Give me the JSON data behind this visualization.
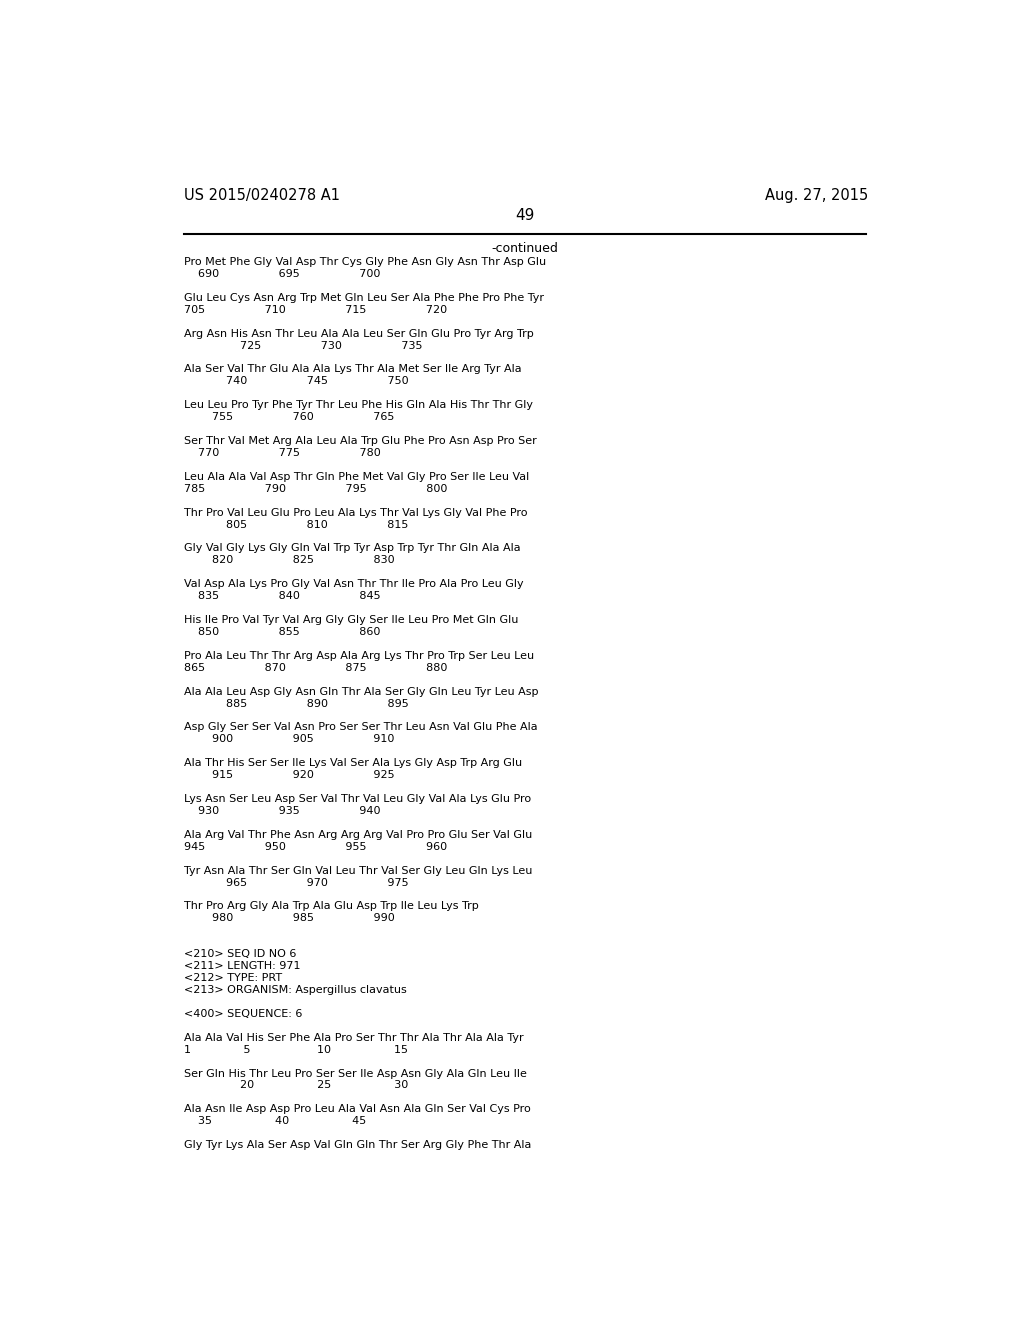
{
  "header_left": "US 2015/0240278 A1",
  "header_right": "Aug. 27, 2015",
  "page_number": "49",
  "continued_label": "-continued",
  "background_color": "#ffffff",
  "text_color": "#000000",
  "lines": [
    "Pro Met Phe Gly Val Asp Thr Cys Gly Phe Asn Gly Asn Thr Asp Glu",
    "    690                 695                 700",
    "",
    "Glu Leu Cys Asn Arg Trp Met Gln Leu Ser Ala Phe Phe Pro Phe Tyr",
    "705                 710                 715                 720",
    "",
    "Arg Asn His Asn Thr Leu Ala Ala Leu Ser Gln Glu Pro Tyr Arg Trp",
    "                725                 730                 735",
    "",
    "Ala Ser Val Thr Glu Ala Ala Lys Thr Ala Met Ser Ile Arg Tyr Ala",
    "            740                 745                 750",
    "",
    "Leu Leu Pro Tyr Phe Tyr Thr Leu Phe His Gln Ala His Thr Thr Gly",
    "        755                 760                 765",
    "",
    "Ser Thr Val Met Arg Ala Leu Ala Trp Glu Phe Pro Asn Asp Pro Ser",
    "    770                 775                 780",
    "",
    "Leu Ala Ala Val Asp Thr Gln Phe Met Val Gly Pro Ser Ile Leu Val",
    "785                 790                 795                 800",
    "",
    "Thr Pro Val Leu Glu Pro Leu Ala Lys Thr Val Lys Gly Val Phe Pro",
    "            805                 810                 815",
    "",
    "Gly Val Gly Lys Gly Gln Val Trp Tyr Asp Trp Tyr Thr Gln Ala Ala",
    "        820                 825                 830",
    "",
    "Val Asp Ala Lys Pro Gly Val Asn Thr Thr Ile Pro Ala Pro Leu Gly",
    "    835                 840                 845",
    "",
    "His Ile Pro Val Tyr Val Arg Gly Gly Ser Ile Leu Pro Met Gln Glu",
    "    850                 855                 860",
    "",
    "Pro Ala Leu Thr Thr Arg Asp Ala Arg Lys Thr Pro Trp Ser Leu Leu",
    "865                 870                 875                 880",
    "",
    "Ala Ala Leu Asp Gly Asn Gln Thr Ala Ser Gly Gln Leu Tyr Leu Asp",
    "            885                 890                 895",
    "",
    "Asp Gly Ser Ser Val Asn Pro Ser Ser Thr Leu Asn Val Glu Phe Ala",
    "        900                 905                 910",
    "",
    "Ala Thr His Ser Ser Ile Lys Val Ser Ala Lys Gly Asp Trp Arg Glu",
    "        915                 920                 925",
    "",
    "Lys Asn Ser Leu Asp Ser Val Thr Val Leu Gly Val Ala Lys Glu Pro",
    "    930                 935                 940",
    "",
    "Ala Arg Val Thr Phe Asn Arg Arg Arg Val Pro Pro Glu Ser Val Glu",
    "945                 950                 955                 960",
    "",
    "Tyr Asn Ala Thr Ser Gln Val Leu Thr Val Ser Gly Leu Gln Lys Leu",
    "            965                 970                 975",
    "",
    "Thr Pro Arg Gly Ala Trp Ala Glu Asp Trp Ile Leu Lys Trp",
    "        980                 985                 990",
    "",
    "",
    "<210> SEQ ID NO 6",
    "<211> LENGTH: 971",
    "<212> TYPE: PRT",
    "<213> ORGANISM: Aspergillus clavatus",
    "",
    "<400> SEQUENCE: 6",
    "",
    "Ala Ala Val His Ser Phe Ala Pro Ser Thr Thr Ala Thr Ala Ala Tyr",
    "1               5                   10                  15",
    "",
    "Ser Gln His Thr Leu Pro Ser Ser Ile Asp Asn Gly Ala Gln Leu Ile",
    "                20                  25                  30",
    "",
    "Ala Asn Ile Asp Asp Pro Leu Ala Val Asn Ala Gln Ser Val Cys Pro",
    "    35                  40                  45",
    "",
    "Gly Tyr Lys Ala Ser Asp Val Gln Gln Thr Ser Arg Gly Phe Thr Ala"
  ]
}
